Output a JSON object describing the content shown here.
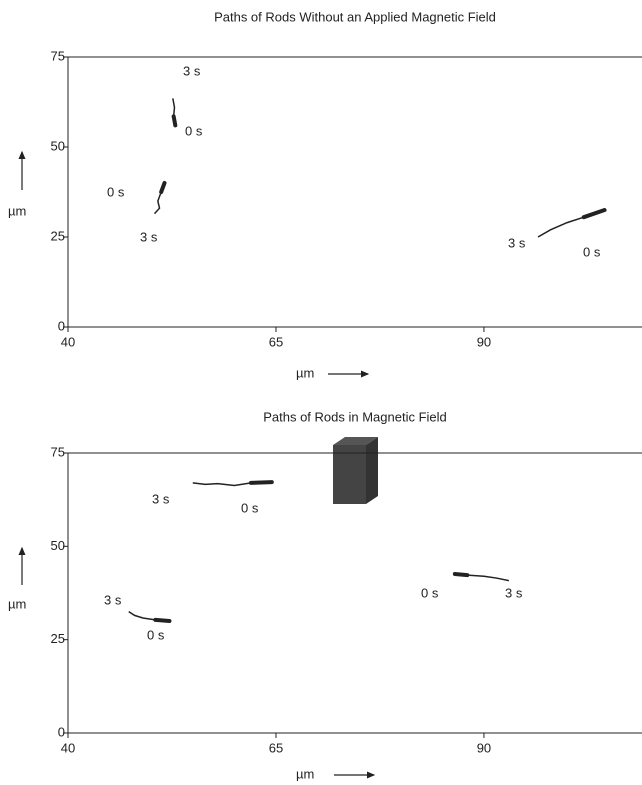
{
  "chart_data": [
    {
      "type": "line",
      "title": "Paths of Rods Without an Applied Magnetic Field",
      "xlabel": "µm",
      "ylabel": "µm",
      "xlim": [
        40,
        109
      ],
      "ylim": [
        0,
        75
      ],
      "xticks": [
        40,
        65,
        90
      ],
      "yticks": [
        0,
        25,
        50,
        75
      ],
      "series": [
        {
          "color": "#222222",
          "x": [
            52.9,
            52.7,
            52.8,
            52.6
          ],
          "values": [
            56,
            58.5,
            61,
            63.5
          ],
          "time_labels": [
            "0 s",
            "3 s"
          ]
        },
        {
          "color": "#222222",
          "x": [
            51.6,
            51.2,
            50.8,
            51,
            50.4
          ],
          "values": [
            40,
            37.5,
            35,
            33,
            31.5
          ],
          "time_labels": [
            "0 s",
            "3 s"
          ]
        },
        {
          "color": "#222222",
          "x": [
            104.5,
            102,
            100,
            98,
            96.5
          ],
          "values": [
            32.5,
            30.5,
            29,
            27,
            25
          ],
          "time_labels": [
            "0 s",
            "3 s"
          ]
        }
      ]
    },
    {
      "type": "line",
      "title": "Paths of Rods in Magnetic Field",
      "xlabel": "µm",
      "ylabel": "µm",
      "xlim": [
        40,
        109
      ],
      "ylim": [
        0,
        75
      ],
      "xticks": [
        40,
        65,
        90
      ],
      "yticks": [
        0,
        25,
        50,
        75
      ],
      "series": [
        {
          "color": "#222222",
          "x": [
            64.5,
            62,
            60,
            58,
            56.5,
            55
          ],
          "values": [
            67.2,
            67,
            66.3,
            66.8,
            66.6,
            67
          ],
          "time_labels": [
            "0 s",
            "3 s"
          ]
        },
        {
          "color": "#222222",
          "x": [
            52.2,
            50.5,
            49,
            48,
            47.3
          ],
          "values": [
            30,
            30.3,
            30.8,
            31.5,
            32.5
          ],
          "time_labels": [
            "0 s",
            "3 s"
          ]
        },
        {
          "color": "#222222",
          "x": [
            86.5,
            88,
            90,
            91.5,
            93
          ],
          "values": [
            42.6,
            42.3,
            42,
            41.5,
            40.8
          ],
          "time_labels": [
            "0 s",
            "3 s"
          ]
        }
      ]
    }
  ]
}
